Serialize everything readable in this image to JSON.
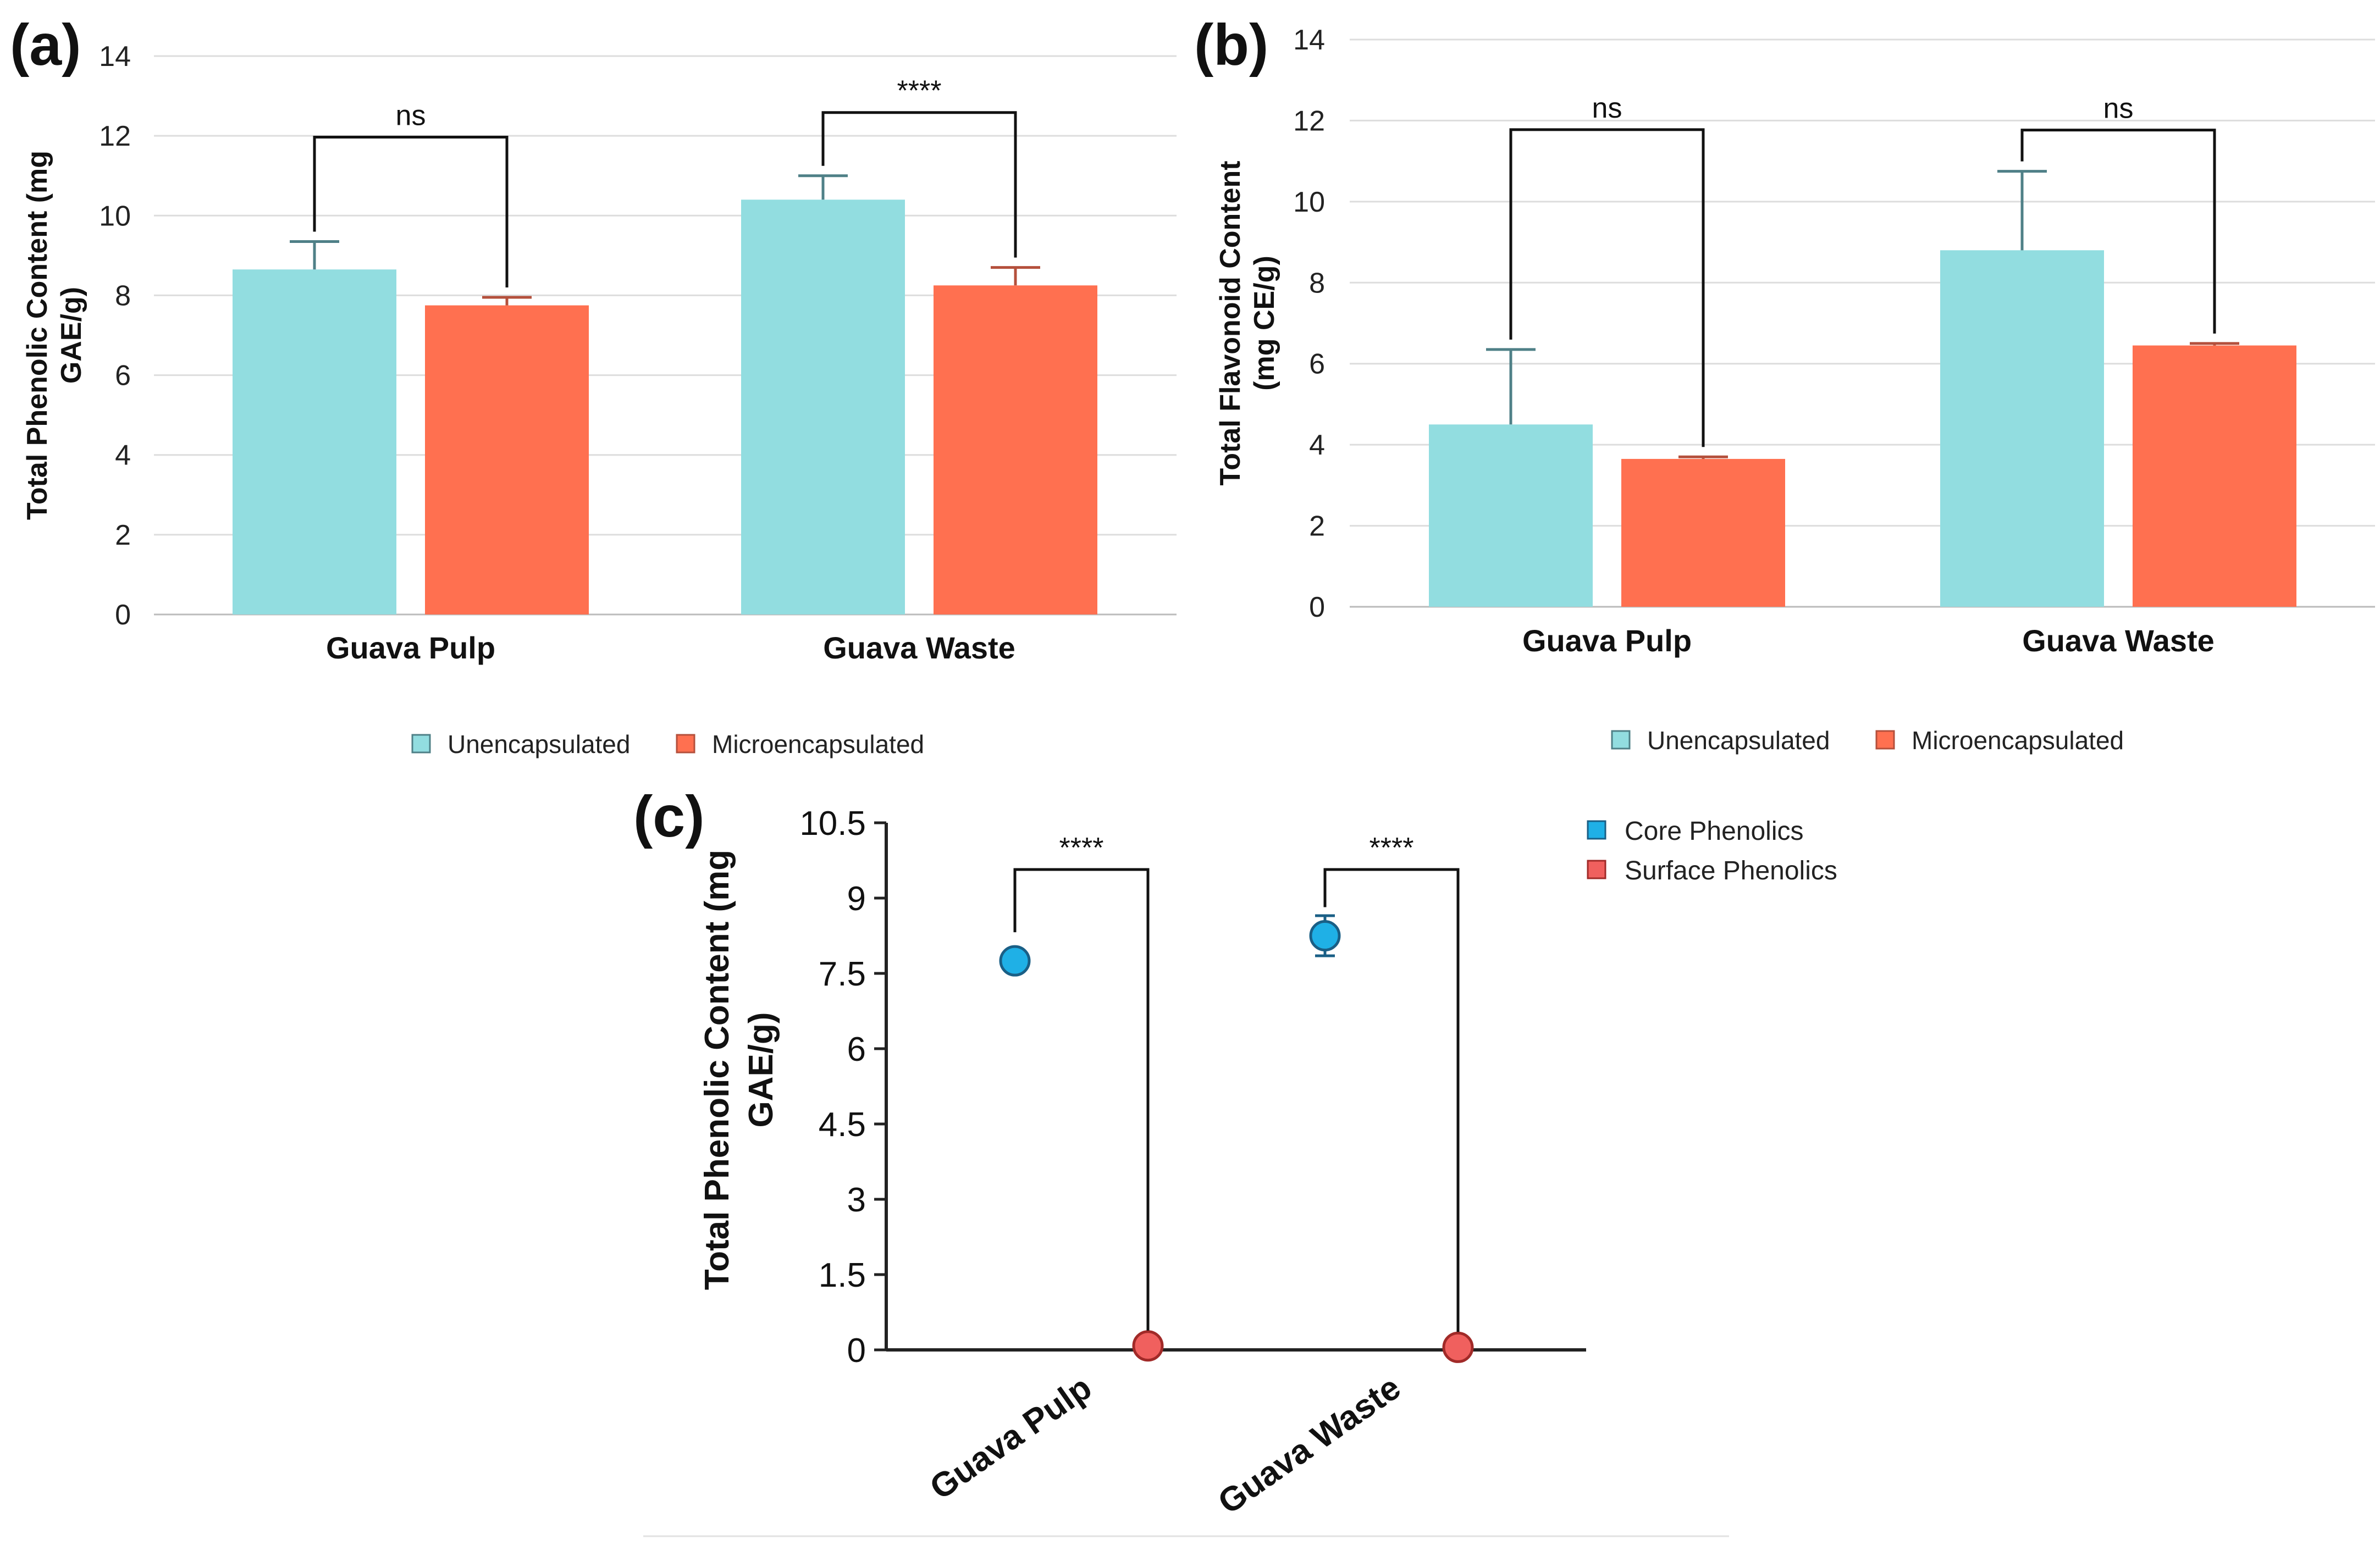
{
  "colors": {
    "unencapsulated": "#92dde0",
    "microencapsulated": "#ff7050",
    "unenc_err": "#4f8087",
    "micro_err": "#b4503c",
    "core": "#1fb0e6",
    "surface": "#f0605e",
    "grid": "#dddddd",
    "bracket": "#111111"
  },
  "chart_data": [
    {
      "panel": "(a)",
      "type": "bar",
      "title": "",
      "ylabel_lines": [
        "Total Phenolic Content (mg",
        "GAE/g)"
      ],
      "categories": [
        "Guava Pulp",
        "Guava Waste"
      ],
      "ylim": [
        0,
        14
      ],
      "yticks": [
        0,
        2,
        4,
        6,
        8,
        10,
        12,
        14
      ],
      "grid": true,
      "legend_position": "bottom",
      "series": [
        {
          "name": "Unencapsulated",
          "values": [
            8.65,
            10.4
          ],
          "errors": [
            0.7,
            0.6
          ]
        },
        {
          "name": "Microencapsulated",
          "values": [
            7.75,
            8.25
          ],
          "errors": [
            0.2,
            0.45
          ]
        }
      ],
      "annotations": [
        {
          "category": "Guava Pulp",
          "label": "ns"
        },
        {
          "category": "Guava Waste",
          "label": "****"
        }
      ]
    },
    {
      "panel": "(b)",
      "type": "bar",
      "title": "",
      "ylabel_lines": [
        "Total Flavonoid Content",
        "(mg CE/g)"
      ],
      "categories": [
        "Guava Pulp",
        "Guava Waste"
      ],
      "ylim": [
        0,
        14
      ],
      "yticks": [
        0,
        2,
        4,
        6,
        8,
        10,
        12,
        14
      ],
      "grid": true,
      "legend_position": "bottom",
      "series": [
        {
          "name": "Unencapsulated",
          "values": [
            4.5,
            8.8
          ],
          "errors": [
            1.85,
            1.95
          ]
        },
        {
          "name": "Microencapsulated",
          "values": [
            3.65,
            6.45
          ],
          "errors": [
            0.05,
            0.05
          ]
        }
      ],
      "annotations": [
        {
          "category": "Guava Pulp",
          "label": "ns"
        },
        {
          "category": "Guava Waste",
          "label": "ns"
        }
      ]
    },
    {
      "panel": "(c)",
      "type": "scatter",
      "title": "",
      "ylabel_lines": [
        "Total Phenolic Content (mg",
        "GAE/g)"
      ],
      "categories": [
        "Guava Pulp",
        "Guava Waste"
      ],
      "ylim": [
        0,
        10.5
      ],
      "yticks": [
        0,
        1.5,
        3,
        4.5,
        6,
        7.5,
        9,
        10.5
      ],
      "grid": false,
      "legend_position": "top-right",
      "series": [
        {
          "name": "Core Phenolics",
          "values": [
            7.75,
            8.25
          ],
          "errors": [
            0,
            0.4
          ]
        },
        {
          "name": "Surface Phenolics",
          "values": [
            0.08,
            0.05
          ],
          "errors": [
            0,
            0
          ]
        }
      ],
      "annotations": [
        {
          "category": "Guava Pulp",
          "label": "****"
        },
        {
          "category": "Guava Waste",
          "label": "****"
        }
      ]
    }
  ]
}
